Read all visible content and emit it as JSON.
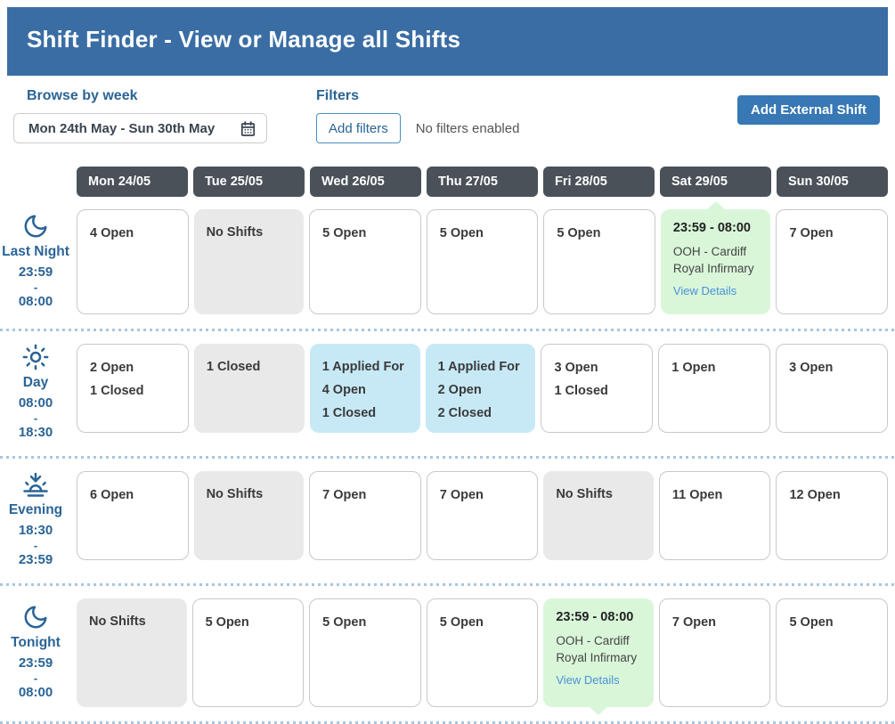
{
  "header": {
    "title": "Shift Finder - View or Manage all Shifts"
  },
  "toolbar": {
    "browse_label": "Browse by week",
    "week_value": "Mon 24th May - Sun 30th May",
    "calendar_icon": "calendar-icon",
    "filters_label": "Filters",
    "add_filters_button": "Add filters",
    "filters_status": "No filters enabled",
    "add_external_shift_button": "Add External Shift"
  },
  "days": [
    "Mon 24/05",
    "Tue 25/05",
    "Wed 26/05",
    "Thu 27/05",
    "Fri 28/05",
    "Sat 29/05",
    "Sun 30/05"
  ],
  "rows": [
    {
      "icon": "moon-icon",
      "label": "Last Night",
      "time_start": "23:59",
      "time_sep": "-",
      "time_end": "08:00",
      "cells": [
        {
          "type": "open",
          "lines": [
            "4 Open"
          ]
        },
        {
          "type": "none",
          "lines": [
            "No Shifts"
          ]
        },
        {
          "type": "open",
          "lines": [
            "5 Open"
          ]
        },
        {
          "type": "open",
          "lines": [
            "5 Open"
          ]
        },
        {
          "type": "open",
          "lines": [
            "5 Open"
          ]
        },
        {
          "type": "detail",
          "arrow": "top",
          "time": "23:59 - 08:00",
          "location": "OOH - Cardiff Royal Infirmary",
          "link": "View Details"
        },
        {
          "type": "open",
          "lines": [
            "7 Open"
          ]
        }
      ]
    },
    {
      "icon": "sun-icon",
      "label": "Day",
      "time_start": "08:00",
      "time_sep": "-",
      "time_end": "18:30",
      "cells": [
        {
          "type": "open",
          "lines": [
            "2 Open",
            "1 Closed"
          ]
        },
        {
          "type": "none",
          "lines": [
            "1 Closed"
          ]
        },
        {
          "type": "applied",
          "lines": [
            "1 Applied For",
            "4 Open",
            "1 Closed"
          ]
        },
        {
          "type": "applied",
          "lines": [
            "1 Applied For",
            "2 Open",
            "2 Closed"
          ]
        },
        {
          "type": "open",
          "lines": [
            "3 Open",
            "1 Closed"
          ]
        },
        {
          "type": "open",
          "lines": [
            "1 Open"
          ]
        },
        {
          "type": "open",
          "lines": [
            "3 Open"
          ]
        }
      ]
    },
    {
      "icon": "sunset-icon",
      "label": "Evening",
      "time_start": "18:30",
      "time_sep": "-",
      "time_end": "23:59",
      "cells": [
        {
          "type": "open",
          "lines": [
            "6 Open"
          ]
        },
        {
          "type": "none",
          "lines": [
            "No Shifts"
          ]
        },
        {
          "type": "open",
          "lines": [
            "7 Open"
          ]
        },
        {
          "type": "open",
          "lines": [
            "7 Open"
          ]
        },
        {
          "type": "none",
          "lines": [
            "No Shifts"
          ]
        },
        {
          "type": "open",
          "lines": [
            "11 Open"
          ]
        },
        {
          "type": "open",
          "lines": [
            "12 Open"
          ]
        }
      ]
    },
    {
      "icon": "moon-icon",
      "label": "Tonight",
      "time_start": "23:59",
      "time_sep": "-",
      "time_end": "08:00",
      "cells": [
        {
          "type": "none",
          "lines": [
            "No Shifts"
          ]
        },
        {
          "type": "open",
          "lines": [
            "5 Open"
          ]
        },
        {
          "type": "open",
          "lines": [
            "5 Open"
          ]
        },
        {
          "type": "open",
          "lines": [
            "5 Open"
          ]
        },
        {
          "type": "detail",
          "arrow": "bottom",
          "time": "23:59 - 08:00",
          "location": "OOH - Cardiff Royal Infirmary",
          "link": "View Details"
        },
        {
          "type": "open",
          "lines": [
            "7 Open"
          ]
        },
        {
          "type": "open",
          "lines": [
            "5 Open"
          ]
        }
      ]
    }
  ],
  "colors": {
    "header_blue": "#3a6da4",
    "accent_blue": "#2a6496",
    "button_blue": "#3878b4",
    "chip_dark": "#4a5159",
    "cell_gray": "#e9e9e9",
    "cell_blue": "#c7e9f6",
    "cell_green": "#d9f6d9",
    "link_blue": "#4a90d9",
    "divider_blue": "#a9c6de"
  }
}
